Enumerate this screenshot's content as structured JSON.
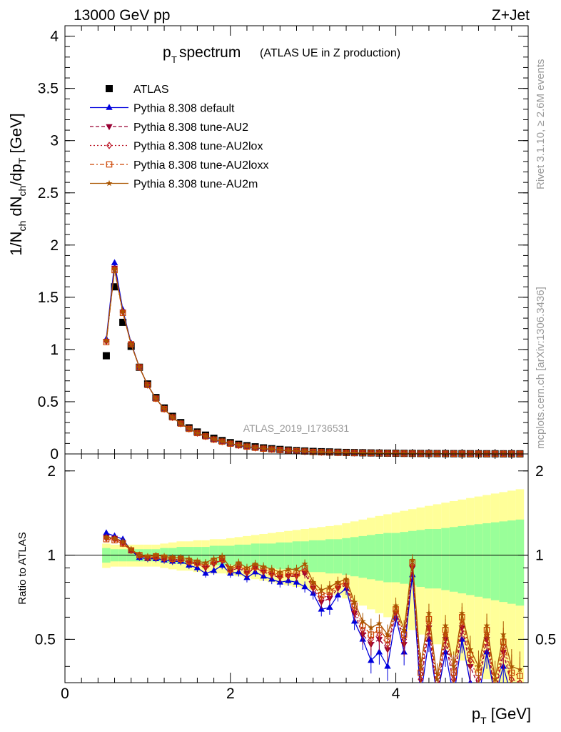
{
  "header": {
    "left": "13000 GeV pp",
    "right": "Z+Jet"
  },
  "side_labels": {
    "rivet": "Rivet 3.1.10, ≥ 2.6M events",
    "mcplots": "mcplots.cern.ch [arXiv:1306.3436]"
  },
  "watermark": "ATLAS_2019_I1736531",
  "title": {
    "main": "p",
    "main_sub": "T",
    "main_rest": " spectrum",
    "small": "(ATLAS UE in Z production)"
  },
  "ylabel_main": "1/N_ch dN_ch/dp_T [GeV]",
  "ylabel_ratio": "Ratio to ATLAS",
  "xlabel": "p_T [GeV]",
  "colors": {
    "atlas": "#000000",
    "default": "#0000dd",
    "au2": "#990033",
    "au2lox": "#bb1122",
    "au2loxx": "#cc4400",
    "au2m": "#aa5500",
    "band_inner": "#99ff99",
    "band_outer": "#ffff99"
  },
  "chart_data": [
    {
      "type": "scatter",
      "panel": "main",
      "xlim": [
        0,
        5.6
      ],
      "ylim": [
        0,
        4.1
      ],
      "yticks": [
        "0",
        "0.5",
        "1",
        "1.5",
        "2",
        "2.5",
        "3",
        "3.5",
        "4"
      ],
      "ytick_values": [
        0,
        0.5,
        1,
        1.5,
        2,
        2.5,
        3,
        3.5,
        4
      ],
      "x": [
        0.5,
        0.6,
        0.7,
        0.8,
        0.9,
        1.0,
        1.1,
        1.2,
        1.3,
        1.4,
        1.5,
        1.6,
        1.7,
        1.8,
        1.9,
        2.0,
        2.1,
        2.2,
        2.3,
        2.4,
        2.5,
        2.6,
        2.7,
        2.8,
        2.9,
        3.0,
        3.1,
        3.2,
        3.3,
        3.4,
        3.5,
        3.6,
        3.7,
        3.8,
        3.9,
        4.0,
        4.1,
        4.2,
        4.3,
        4.4,
        4.5,
        4.6,
        4.7,
        4.8,
        4.9,
        5.0,
        5.1,
        5.2,
        5.3,
        5.4,
        5.5
      ],
      "series": [
        {
          "name": "ATLAS",
          "key": "atlas",
          "marker": "square",
          "line": "none",
          "values": [
            0.94,
            1.6,
            1.26,
            1.03,
            0.83,
            0.67,
            0.54,
            0.44,
            0.36,
            0.3,
            0.25,
            0.21,
            0.18,
            0.15,
            0.128,
            0.108,
            0.092,
            0.079,
            0.068,
            0.058,
            0.05,
            0.043,
            0.037,
            0.032,
            0.028,
            0.024,
            0.021,
            0.019,
            0.016,
            0.014,
            0.0125,
            0.011,
            0.0095,
            0.0083,
            0.0073,
            0.0064,
            0.0056,
            0.005,
            0.0044,
            0.0039,
            0.0034,
            0.003,
            0.0027,
            0.0024,
            0.0021,
            0.0019,
            0.0017,
            0.0015,
            0.0013,
            0.0012,
            0.0011
          ]
        },
        {
          "name": "Pythia 8.308 default",
          "key": "default",
          "marker": "triangle-up",
          "line": "solid",
          "values": [
            1.1,
            1.83,
            1.38,
            1.06,
            0.83,
            0.66,
            0.53,
            0.43,
            0.35,
            0.29,
            0.24,
            0.2,
            0.165,
            0.135,
            0.115,
            0.095,
            0.08,
            0.068,
            0.057,
            0.048,
            0.041,
            0.035,
            0.03,
            0.025,
            0.022,
            0.018,
            0.016,
            0.014,
            0.012,
            0.01,
            0.009,
            0.008,
            0.007,
            0.006,
            0.005,
            0.0045,
            0.004,
            0.0035,
            0.003,
            0.0027,
            0.0023,
            0.002,
            0.0018,
            0.0016,
            0.0014,
            0.0012,
            0.0011,
            0.001,
            0.0009,
            0.0008,
            0.0007
          ]
        },
        {
          "name": "Pythia 8.308 tune-AU2",
          "key": "au2",
          "marker": "triangle-down",
          "line": "dashed",
          "values": [
            1.08,
            1.78,
            1.36,
            1.05,
            0.83,
            0.66,
            0.53,
            0.43,
            0.35,
            0.29,
            0.24,
            0.2,
            0.168,
            0.138,
            0.118,
            0.098,
            0.083,
            0.07,
            0.059,
            0.05,
            0.043,
            0.037,
            0.031,
            0.027,
            0.023,
            0.019,
            0.017,
            0.015,
            0.013,
            0.011,
            0.0095,
            0.0085,
            0.0075,
            0.0065,
            0.0055,
            0.005,
            0.0044,
            0.0039,
            0.0034,
            0.003,
            0.0026,
            0.0023,
            0.002,
            0.0018,
            0.0016,
            0.0014,
            0.0012,
            0.0011,
            0.001,
            0.0009,
            0.0008
          ]
        },
        {
          "name": "Pythia 8.308 tune-AU2lox",
          "key": "au2lox",
          "marker": "diamond-open",
          "line": "dotted",
          "values": [
            1.08,
            1.77,
            1.36,
            1.05,
            0.83,
            0.66,
            0.53,
            0.43,
            0.35,
            0.29,
            0.24,
            0.2,
            0.168,
            0.138,
            0.118,
            0.098,
            0.083,
            0.07,
            0.059,
            0.05,
            0.043,
            0.037,
            0.031,
            0.027,
            0.023,
            0.019,
            0.017,
            0.015,
            0.013,
            0.011,
            0.0095,
            0.0085,
            0.0075,
            0.0065,
            0.0055,
            0.005,
            0.0044,
            0.0039,
            0.0034,
            0.003,
            0.0026,
            0.0023,
            0.002,
            0.0018,
            0.0016,
            0.0014,
            0.0012,
            0.0011,
            0.001,
            0.0009,
            0.0008
          ]
        },
        {
          "name": "Pythia 8.308 tune-AU2loxx",
          "key": "au2loxx",
          "marker": "square-open",
          "line": "dashdot",
          "values": [
            1.07,
            1.76,
            1.35,
            1.05,
            0.83,
            0.66,
            0.53,
            0.43,
            0.35,
            0.29,
            0.24,
            0.2,
            0.168,
            0.138,
            0.118,
            0.098,
            0.083,
            0.07,
            0.059,
            0.05,
            0.043,
            0.037,
            0.031,
            0.027,
            0.023,
            0.019,
            0.017,
            0.015,
            0.013,
            0.011,
            0.0095,
            0.0085,
            0.0075,
            0.0065,
            0.0055,
            0.005,
            0.0044,
            0.0039,
            0.0034,
            0.003,
            0.0026,
            0.0023,
            0.002,
            0.0018,
            0.0016,
            0.0014,
            0.0012,
            0.0011,
            0.001,
            0.0009,
            0.0008
          ]
        },
        {
          "name": "Pythia 8.308 tune-AU2m",
          "key": "au2m",
          "marker": "star",
          "line": "solid",
          "values": [
            1.08,
            1.77,
            1.36,
            1.05,
            0.83,
            0.66,
            0.53,
            0.43,
            0.35,
            0.29,
            0.24,
            0.2,
            0.17,
            0.14,
            0.12,
            0.1,
            0.085,
            0.072,
            0.061,
            0.052,
            0.044,
            0.038,
            0.032,
            0.028,
            0.024,
            0.02,
            0.018,
            0.016,
            0.014,
            0.012,
            0.01,
            0.009,
            0.008,
            0.007,
            0.006,
            0.0053,
            0.0046,
            0.0041,
            0.0036,
            0.0032,
            0.0028,
            0.0025,
            0.0022,
            0.002,
            0.0018,
            0.0016,
            0.0014,
            0.0012,
            0.0011,
            0.001,
            0.0009
          ]
        }
      ]
    },
    {
      "type": "line",
      "panel": "ratio",
      "xlim": [
        0,
        5.6
      ],
      "ylim": [
        0.35,
        2.3
      ],
      "xticks": [
        "0",
        "2",
        "4"
      ],
      "xtick_values": [
        0,
        2,
        4
      ],
      "yticks": [
        "0.5",
        "1",
        "2"
      ],
      "ytick_values": [
        0.5,
        1,
        2
      ],
      "x": [
        0.5,
        0.6,
        0.7,
        0.8,
        0.9,
        1.0,
        1.1,
        1.2,
        1.3,
        1.4,
        1.5,
        1.6,
        1.7,
        1.8,
        1.9,
        2.0,
        2.1,
        2.2,
        2.3,
        2.4,
        2.5,
        2.6,
        2.7,
        2.8,
        2.9,
        3.0,
        3.1,
        3.2,
        3.3,
        3.4,
        3.5,
        3.6,
        3.7,
        3.8,
        3.9,
        4.0,
        4.1,
        4.2,
        4.3,
        4.4,
        4.5,
        4.6,
        4.7,
        4.8,
        4.9,
        5.0,
        5.1,
        5.2,
        5.3,
        5.4,
        5.5
      ],
      "band_inner_halfwidth": [
        0.06,
        0.05,
        0.05,
        0.05,
        0.05,
        0.05,
        0.05,
        0.06,
        0.06,
        0.07,
        0.07,
        0.07,
        0.07,
        0.08,
        0.08,
        0.08,
        0.09,
        0.09,
        0.1,
        0.1,
        0.1,
        0.11,
        0.11,
        0.12,
        0.12,
        0.13,
        0.13,
        0.14,
        0.14,
        0.15,
        0.16,
        0.17,
        0.18,
        0.19,
        0.2,
        0.2,
        0.21,
        0.22,
        0.23,
        0.24,
        0.24,
        0.25,
        0.26,
        0.27,
        0.28,
        0.29,
        0.3,
        0.31,
        0.32,
        0.33,
        0.34
      ],
      "band_outer_halfwidth": [
        0.1,
        0.09,
        0.09,
        0.09,
        0.09,
        0.09,
        0.09,
        0.1,
        0.11,
        0.12,
        0.12,
        0.13,
        0.13,
        0.14,
        0.14,
        0.15,
        0.16,
        0.17,
        0.18,
        0.19,
        0.2,
        0.21,
        0.22,
        0.23,
        0.24,
        0.25,
        0.26,
        0.27,
        0.28,
        0.3,
        0.32,
        0.34,
        0.36,
        0.38,
        0.4,
        0.42,
        0.44,
        0.46,
        0.48,
        0.5,
        0.52,
        0.54,
        0.56,
        0.58,
        0.6,
        0.62,
        0.64,
        0.66,
        0.68,
        0.7,
        0.72
      ],
      "series": [
        {
          "name": "Pythia 8.308 default",
          "key": "default",
          "marker": "triangle-up",
          "line": "solid",
          "values": [
            1.2,
            1.17,
            1.14,
            1.04,
            0.98,
            0.97,
            0.97,
            0.96,
            0.95,
            0.95,
            0.92,
            0.9,
            0.86,
            0.88,
            0.92,
            0.86,
            0.87,
            0.83,
            0.87,
            0.84,
            0.82,
            0.8,
            0.81,
            0.8,
            0.77,
            0.73,
            0.64,
            0.65,
            0.72,
            0.76,
            0.58,
            0.5,
            0.42,
            0.45,
            0.4,
            0.6,
            0.45,
            0.85,
            0.3,
            0.5,
            0.25,
            0.45,
            0.3,
            0.5,
            0.35,
            0.3,
            0.45,
            0.25,
            0.4,
            0.3,
            0.3
          ]
        },
        {
          "name": "Pythia 8.308 tune-AU2",
          "key": "au2",
          "marker": "triangle-down",
          "line": "dashed",
          "values": [
            1.16,
            1.15,
            1.11,
            1.04,
            0.99,
            0.98,
            0.98,
            0.97,
            0.96,
            0.96,
            0.94,
            0.93,
            0.9,
            0.93,
            0.96,
            0.88,
            0.9,
            0.86,
            0.9,
            0.87,
            0.85,
            0.83,
            0.84,
            0.84,
            0.86,
            0.76,
            0.68,
            0.7,
            0.76,
            0.78,
            0.62,
            0.52,
            0.48,
            0.5,
            0.46,
            0.62,
            0.48,
            0.9,
            0.34,
            0.55,
            0.3,
            0.5,
            0.34,
            0.55,
            0.4,
            0.34,
            0.5,
            0.3,
            0.45,
            0.34,
            0.33
          ]
        },
        {
          "name": "Pythia 8.308 tune-AU2lox",
          "key": "au2lox",
          "marker": "diamond-open",
          "line": "dotted",
          "values": [
            1.15,
            1.14,
            1.1,
            1.04,
            1.0,
            0.98,
            0.98,
            0.97,
            0.97,
            0.96,
            0.95,
            0.93,
            0.91,
            0.94,
            0.96,
            0.88,
            0.91,
            0.87,
            0.9,
            0.88,
            0.86,
            0.84,
            0.85,
            0.85,
            0.88,
            0.77,
            0.7,
            0.72,
            0.77,
            0.79,
            0.64,
            0.54,
            0.5,
            0.52,
            0.48,
            0.63,
            0.5,
            0.92,
            0.36,
            0.57,
            0.32,
            0.52,
            0.36,
            0.57,
            0.42,
            0.36,
            0.52,
            0.32,
            0.47,
            0.36,
            0.35
          ]
        },
        {
          "name": "Pythia 8.308 tune-AU2loxx",
          "key": "au2loxx",
          "marker": "square-open",
          "line": "dashdot",
          "values": [
            1.14,
            1.13,
            1.1,
            1.04,
            1.0,
            0.98,
            0.99,
            0.98,
            0.97,
            0.97,
            0.95,
            0.94,
            0.92,
            0.95,
            0.97,
            0.89,
            0.92,
            0.88,
            0.91,
            0.89,
            0.87,
            0.85,
            0.86,
            0.86,
            0.9,
            0.78,
            0.72,
            0.74,
            0.78,
            0.8,
            0.66,
            0.56,
            0.52,
            0.54,
            0.5,
            0.64,
            0.52,
            0.94,
            0.38,
            0.59,
            0.34,
            0.54,
            0.38,
            0.6,
            0.44,
            0.38,
            0.54,
            0.34,
            0.49,
            0.38,
            0.37
          ]
        },
        {
          "name": "Pythia 8.308 tune-AU2m",
          "key": "au2m",
          "marker": "star",
          "line": "solid",
          "values": [
            1.16,
            1.15,
            1.12,
            1.05,
            1.0,
            0.99,
            1.0,
            0.99,
            0.98,
            0.98,
            0.97,
            0.95,
            0.94,
            0.97,
            0.99,
            0.9,
            0.94,
            0.9,
            0.93,
            0.91,
            0.89,
            0.87,
            0.89,
            0.89,
            0.93,
            0.8,
            0.75,
            0.77,
            0.8,
            0.82,
            0.68,
            0.58,
            0.55,
            0.57,
            0.52,
            0.66,
            0.54,
            0.96,
            0.4,
            0.62,
            0.36,
            0.56,
            0.4,
            0.62,
            0.46,
            0.4,
            0.56,
            0.36,
            0.52,
            0.4,
            0.39
          ]
        }
      ]
    }
  ]
}
